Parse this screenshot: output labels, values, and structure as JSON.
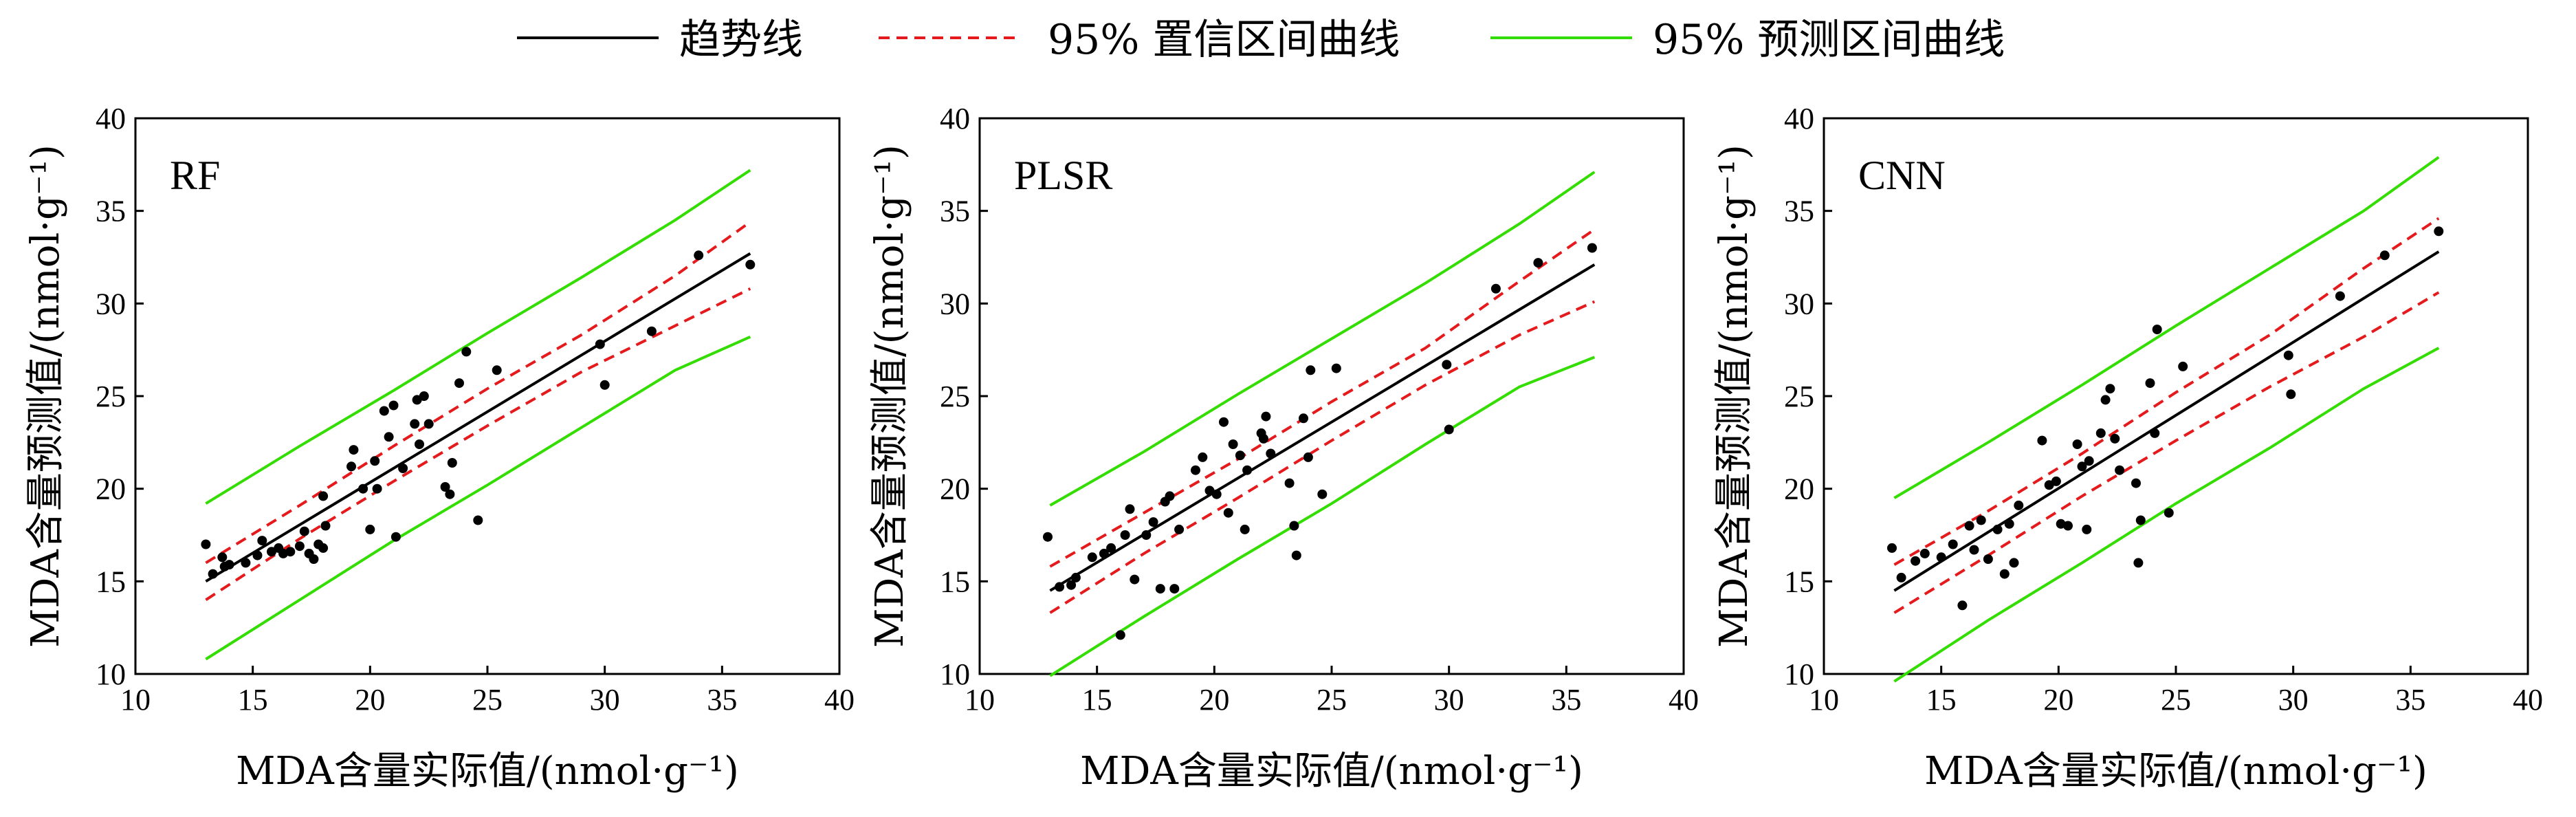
{
  "legend": {
    "items": [
      {
        "label": "趋势线",
        "color": "#000000",
        "style": "solid"
      },
      {
        "label": "95% 置信区间曲线",
        "color": "#e41a1c",
        "style": "dashed"
      },
      {
        "label": "95% 预测区间曲线",
        "color": "#33dd00",
        "style": "solid"
      }
    ]
  },
  "chart_data": [
    {
      "type": "scatter",
      "title": "RF",
      "xlabel": "MDA含量实际值/(nmol·g⁻¹)",
      "ylabel": "MDA含量预测值/(nmol·g⁻¹)",
      "xlim": [
        10,
        40
      ],
      "ylim": [
        10,
        40
      ],
      "xticks": [
        10,
        15,
        20,
        25,
        30,
        35,
        40
      ],
      "yticks": [
        10,
        15,
        20,
        25,
        30,
        35,
        40
      ],
      "trend": {
        "x": [
          13,
          36.2
        ],
        "y": [
          15.0,
          32.7
        ]
      },
      "ci_upper": {
        "x": [
          13,
          17,
          21,
          25,
          29,
          33,
          36.2
        ],
        "y": [
          16.0,
          19.1,
          22.3,
          25.4,
          28.3,
          31.5,
          34.4
        ]
      },
      "ci_lower": {
        "x": [
          13,
          17,
          21,
          25,
          29,
          33,
          36.2
        ],
        "y": [
          14.0,
          17.3,
          20.4,
          23.4,
          26.3,
          28.8,
          30.8
        ]
      },
      "pi_upper": {
        "x": [
          13,
          17,
          21,
          25,
          29,
          33,
          36.2
        ],
        "y": [
          19.2,
          22.3,
          25.3,
          28.4,
          31.4,
          34.5,
          37.2
        ]
      },
      "pi_lower": {
        "x": [
          13,
          17,
          21,
          25,
          29,
          33,
          36.2
        ],
        "y": [
          10.8,
          14.0,
          17.2,
          20.2,
          23.3,
          26.4,
          28.2
        ]
      },
      "points": [
        [
          13.0,
          17.0
        ],
        [
          13.3,
          15.4
        ],
        [
          13.7,
          16.3
        ],
        [
          13.8,
          15.8
        ],
        [
          14.0,
          15.9
        ],
        [
          14.7,
          16.0
        ],
        [
          15.2,
          16.4
        ],
        [
          15.4,
          17.2
        ],
        [
          15.8,
          16.6
        ],
        [
          16.1,
          16.8
        ],
        [
          16.3,
          16.5
        ],
        [
          16.6,
          16.6
        ],
        [
          17.0,
          16.9
        ],
        [
          17.2,
          17.7
        ],
        [
          17.4,
          16.5
        ],
        [
          17.6,
          16.2
        ],
        [
          17.8,
          17.0
        ],
        [
          18.0,
          16.8
        ],
        [
          18.1,
          18.0
        ],
        [
          18.0,
          19.6
        ],
        [
          19.3,
          22.1
        ],
        [
          19.2,
          21.2
        ],
        [
          19.7,
          20.0
        ],
        [
          20.0,
          17.8
        ],
        [
          20.2,
          21.5
        ],
        [
          20.3,
          20.0
        ],
        [
          20.6,
          24.2
        ],
        [
          20.8,
          22.8
        ],
        [
          21.0,
          24.5
        ],
        [
          21.1,
          17.4
        ],
        [
          21.4,
          21.1
        ],
        [
          21.9,
          23.5
        ],
        [
          22.0,
          24.8
        ],
        [
          22.1,
          22.4
        ],
        [
          22.3,
          25.0
        ],
        [
          22.5,
          23.5
        ],
        [
          23.2,
          20.1
        ],
        [
          23.4,
          19.7
        ],
        [
          23.5,
          21.4
        ],
        [
          23.8,
          25.7
        ],
        [
          24.1,
          27.4
        ],
        [
          24.6,
          18.3
        ],
        [
          25.4,
          26.4
        ],
        [
          29.8,
          27.8
        ],
        [
          30.0,
          25.6
        ],
        [
          32.0,
          28.5
        ],
        [
          34.0,
          32.6
        ],
        [
          36.2,
          32.1
        ]
      ]
    },
    {
      "type": "scatter",
      "title": "PLSR",
      "xlabel": "MDA含量实际值/(nmol·g⁻¹)",
      "ylabel": "MDA含量预测值/(nmol·g⁻¹)",
      "xlim": [
        10,
        40
      ],
      "ylim": [
        10,
        40
      ],
      "xticks": [
        10,
        15,
        20,
        25,
        30,
        35,
        40
      ],
      "yticks": [
        10,
        15,
        20,
        25,
        30,
        35,
        40
      ],
      "trend": {
        "x": [
          13,
          36.2
        ],
        "y": [
          14.5,
          32.1
        ]
      },
      "ci_upper": {
        "x": [
          13,
          17,
          21,
          25,
          29,
          33,
          36.2
        ],
        "y": [
          15.8,
          18.7,
          21.6,
          24.7,
          27.6,
          31.2,
          34.0
        ]
      },
      "ci_lower": {
        "x": [
          13,
          17,
          21,
          25,
          29,
          33,
          36.2
        ],
        "y": [
          13.3,
          16.5,
          19.5,
          22.6,
          25.6,
          28.3,
          30.1
        ]
      },
      "pi_upper": {
        "x": [
          13,
          17,
          21,
          25,
          29,
          33,
          36.2
        ],
        "y": [
          19.1,
          22.0,
          25.1,
          28.1,
          31.1,
          34.3,
          37.1
        ]
      },
      "pi_lower": {
        "x": [
          13,
          17,
          21,
          25,
          29,
          33,
          36.2
        ],
        "y": [
          9.9,
          13.1,
          16.2,
          19.2,
          22.4,
          25.5,
          27.1
        ]
      },
      "points": [
        [
          12.9,
          17.4
        ],
        [
          13.4,
          14.7
        ],
        [
          13.9,
          14.8
        ],
        [
          14.1,
          15.2
        ],
        [
          14.8,
          16.3
        ],
        [
          15.3,
          16.5
        ],
        [
          15.6,
          16.8
        ],
        [
          16.0,
          12.1
        ],
        [
          16.2,
          17.5
        ],
        [
          16.4,
          18.9
        ],
        [
          16.6,
          15.1
        ],
        [
          17.1,
          17.5
        ],
        [
          17.4,
          18.2
        ],
        [
          17.7,
          14.6
        ],
        [
          17.9,
          19.3
        ],
        [
          18.1,
          19.6
        ],
        [
          18.3,
          14.6
        ],
        [
          18.5,
          17.8
        ],
        [
          19.2,
          21.0
        ],
        [
          19.5,
          21.7
        ],
        [
          19.8,
          19.9
        ],
        [
          20.1,
          19.7
        ],
        [
          20.4,
          23.6
        ],
        [
          20.6,
          18.7
        ],
        [
          20.8,
          22.4
        ],
        [
          21.1,
          21.8
        ],
        [
          21.3,
          17.8
        ],
        [
          21.4,
          21.0
        ],
        [
          22.0,
          23.0
        ],
        [
          22.1,
          22.7
        ],
        [
          22.2,
          23.9
        ],
        [
          22.4,
          21.9
        ],
        [
          23.2,
          20.3
        ],
        [
          23.4,
          18.0
        ],
        [
          23.5,
          16.4
        ],
        [
          23.8,
          23.8
        ],
        [
          24.0,
          21.7
        ],
        [
          24.1,
          26.4
        ],
        [
          24.6,
          19.7
        ],
        [
          25.2,
          26.5
        ],
        [
          29.9,
          26.7
        ],
        [
          30.0,
          23.2
        ],
        [
          32.0,
          30.8
        ],
        [
          33.8,
          32.2
        ],
        [
          36.1,
          33.0
        ]
      ]
    },
    {
      "type": "scatter",
      "title": "CNN",
      "xlabel": "MDA含量实际值/(nmol·g⁻¹)",
      "ylabel": "MDA含量预测值/(nmol·g⁻¹)",
      "xlim": [
        10,
        40
      ],
      "ylim": [
        10,
        40
      ],
      "xticks": [
        10,
        15,
        20,
        25,
        30,
        35,
        40
      ],
      "yticks": [
        10,
        15,
        20,
        25,
        30,
        35,
        40
      ],
      "trend": {
        "x": [
          13,
          36.2
        ],
        "y": [
          14.5,
          32.8
        ]
      },
      "ci_upper": {
        "x": [
          13,
          17,
          21,
          25,
          29,
          33,
          36.2
        ],
        "y": [
          15.9,
          18.8,
          21.9,
          25.2,
          28.3,
          31.9,
          34.6
        ]
      },
      "ci_lower": {
        "x": [
          13,
          17,
          21,
          25,
          29,
          33,
          36.2
        ],
        "y": [
          13.3,
          16.4,
          19.6,
          22.6,
          25.5,
          28.2,
          30.6
        ]
      },
      "pi_upper": {
        "x": [
          13,
          17,
          21,
          25,
          29,
          33,
          36.2
        ],
        "y": [
          19.5,
          22.5,
          25.6,
          28.8,
          31.9,
          35.0,
          37.9
        ]
      },
      "pi_lower": {
        "x": [
          13,
          17,
          21,
          25,
          29,
          33,
          36.2
        ],
        "y": [
          9.6,
          12.9,
          16.0,
          19.2,
          22.2,
          25.4,
          27.6
        ]
      },
      "points": [
        [
          12.9,
          16.8
        ],
        [
          13.3,
          15.2
        ],
        [
          13.9,
          16.1
        ],
        [
          14.3,
          16.5
        ],
        [
          15.0,
          16.3
        ],
        [
          15.5,
          17.0
        ],
        [
          15.9,
          13.7
        ],
        [
          16.2,
          18.0
        ],
        [
          16.4,
          16.7
        ],
        [
          16.7,
          18.3
        ],
        [
          17.0,
          16.2
        ],
        [
          17.4,
          17.8
        ],
        [
          17.7,
          15.4
        ],
        [
          17.9,
          18.1
        ],
        [
          18.1,
          16.0
        ],
        [
          18.3,
          19.1
        ],
        [
          19.3,
          22.6
        ],
        [
          19.6,
          20.2
        ],
        [
          19.9,
          20.4
        ],
        [
          20.1,
          18.1
        ],
        [
          20.4,
          18.0
        ],
        [
          20.8,
          22.4
        ],
        [
          21.0,
          21.2
        ],
        [
          21.2,
          17.8
        ],
        [
          21.3,
          21.5
        ],
        [
          21.8,
          23.0
        ],
        [
          22.0,
          24.8
        ],
        [
          22.2,
          25.4
        ],
        [
          22.4,
          22.7
        ],
        [
          22.6,
          21.0
        ],
        [
          23.3,
          20.3
        ],
        [
          23.4,
          16.0
        ],
        [
          23.5,
          18.3
        ],
        [
          23.9,
          25.7
        ],
        [
          24.1,
          23.0
        ],
        [
          24.2,
          28.6
        ],
        [
          24.7,
          18.7
        ],
        [
          25.3,
          26.6
        ],
        [
          29.8,
          27.2
        ],
        [
          29.9,
          25.1
        ],
        [
          32.0,
          30.4
        ],
        [
          33.9,
          32.6
        ],
        [
          36.2,
          33.9
        ]
      ]
    }
  ]
}
